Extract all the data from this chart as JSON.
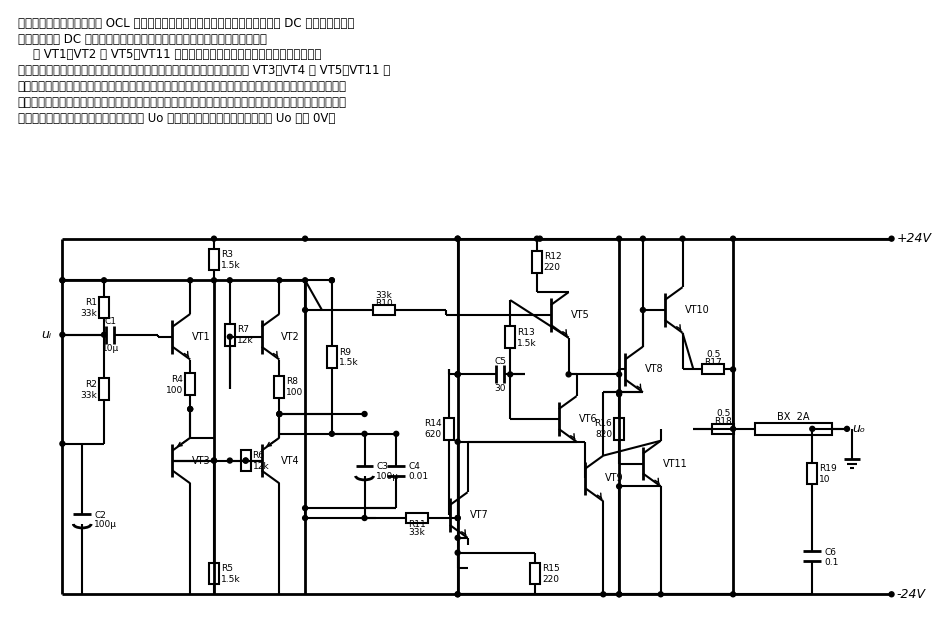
{
  "text_lines": [
    "本电路可以较好地克服普通 OCL 电路的一些主要缺点，其动态电声技术指标可与 DC 功率放大器相媲",
    "美，但无一般 DC 功放电路输出端直流漂移大而需另设直流伺服电路的缺点。",
    "    在 VT1、VT2 及 VT5～VT11 等组成的信号功放电路中每级都加了适当的局部",
    "负反馈，同时取消了大环路负反馈电容，以此减小瞬态互调失真。此外，在 VT3、VT4 及 VT5～VT11 等",
    "组成另一个强直流负反馈放大电路与上述信号功放以极简单的形式结合起来，组成两个结构上互相联系，工",
    "作过程又各自独立的闭环回路。两个环路共同作用，使得放大器的输出端静态直流零电位非常稳定。工作过",
    "程为：若由于某种原因使输出端直流电位 Uo 上升，则经反馈和直流放大，可使 Uo 降到 0V。"
  ],
  "bg": "#ffffff"
}
